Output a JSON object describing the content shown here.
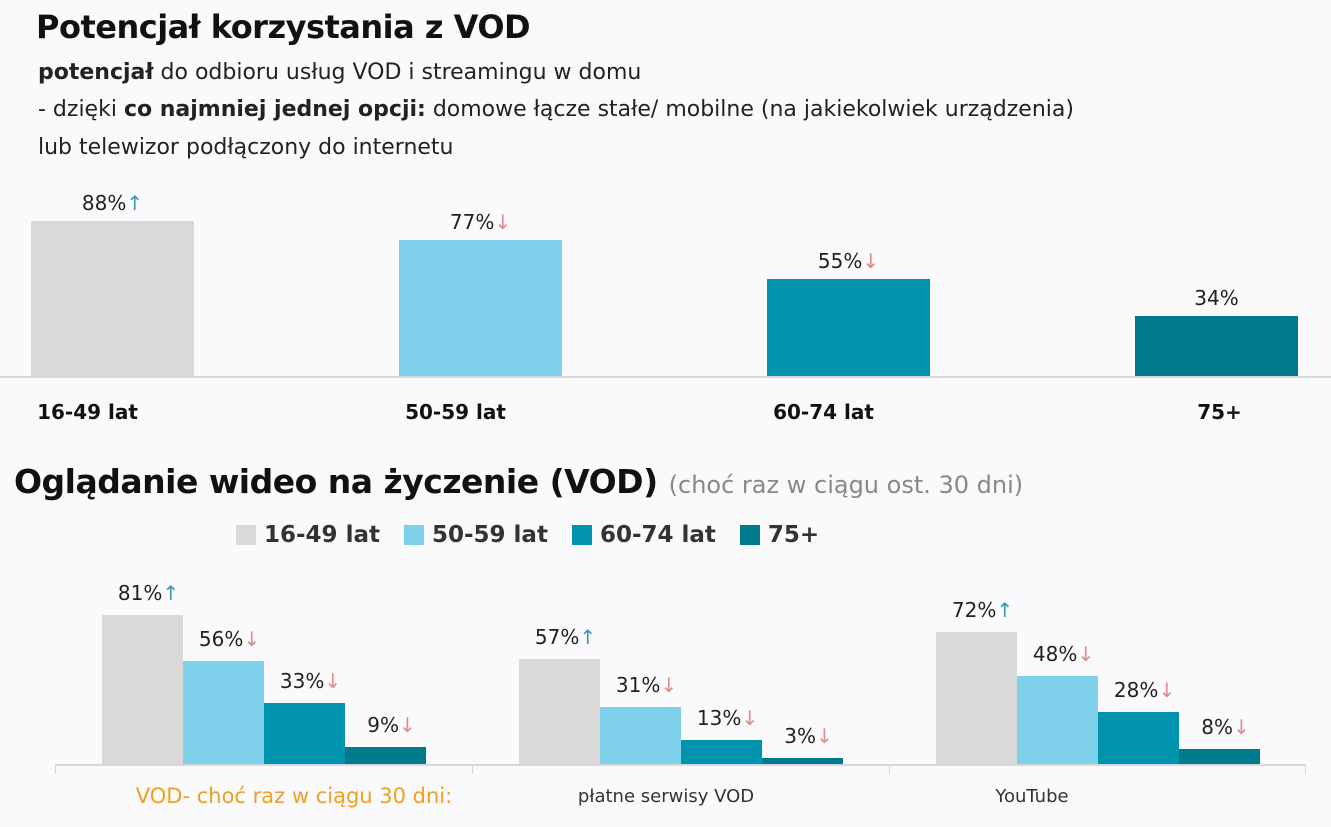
{
  "header": {
    "title": "Potencjał korzystania z VOD",
    "line1_bold": "potencjał",
    "line1_rest": " do odbioru usług VOD i streamingu w domu",
    "line2_pre": "- dzięki ",
    "line2_bold": "co najmniej jednej opcji:",
    "line2_rest": " domowe łącze stałe/ mobilne (na jakiekolwiek urządzenia)",
    "line3": "lub telewizor podłączony do internetu"
  },
  "colors": {
    "16-49": "#d9d9d9",
    "50-59": "#7fd0eb",
    "60-74": "#0093ad",
    "75+": "#007a8c",
    "up_arrow": "#3a9bb0",
    "down_arrow": "#e08a8a",
    "highlight": "#f0a020"
  },
  "chart_data": [
    {
      "type": "bar",
      "categories": [
        "16-49 lat",
        "50-59 lat",
        "60-74 lat",
        "75+"
      ],
      "values": [
        88,
        77,
        55,
        34
      ],
      "labels": [
        "88%",
        "77%",
        "55%",
        "34%"
      ],
      "trend": [
        "up",
        "down",
        "down",
        ""
      ],
      "unit": "%",
      "ylim": [
        0,
        100
      ]
    },
    {
      "type": "bar",
      "title": "Oglądanie wideo na życzenie (VOD)",
      "subtitle": "(choć raz w ciągu ost. 30 dni)",
      "categories": [
        "VOD- choć raz w ciągu 30 dni:",
        "płatne serwisy VOD",
        "YouTube"
      ],
      "legend": "top",
      "series": [
        {
          "name": "16-49 lat",
          "values": [
            81,
            57,
            72
          ],
          "labels": [
            "81%",
            "57%",
            "72%"
          ],
          "trend": [
            "up",
            "up",
            "up"
          ]
        },
        {
          "name": "50-59 lat",
          "values": [
            56,
            31,
            48
          ],
          "labels": [
            "56%",
            "31%",
            "48%"
          ],
          "trend": [
            "down",
            "down",
            "down"
          ]
        },
        {
          "name": "60-74 lat",
          "values": [
            33,
            13,
            28
          ],
          "labels": [
            "33%",
            "13%",
            "28%"
          ],
          "trend": [
            "down",
            "down",
            "down"
          ]
        },
        {
          "name": "75+",
          "values": [
            9,
            3,
            8
          ],
          "labels": [
            "9%",
            "3%",
            "8%"
          ],
          "trend": [
            "down",
            "down",
            "down"
          ]
        }
      ],
      "unit": "%",
      "ylim": [
        0,
        100
      ]
    }
  ]
}
